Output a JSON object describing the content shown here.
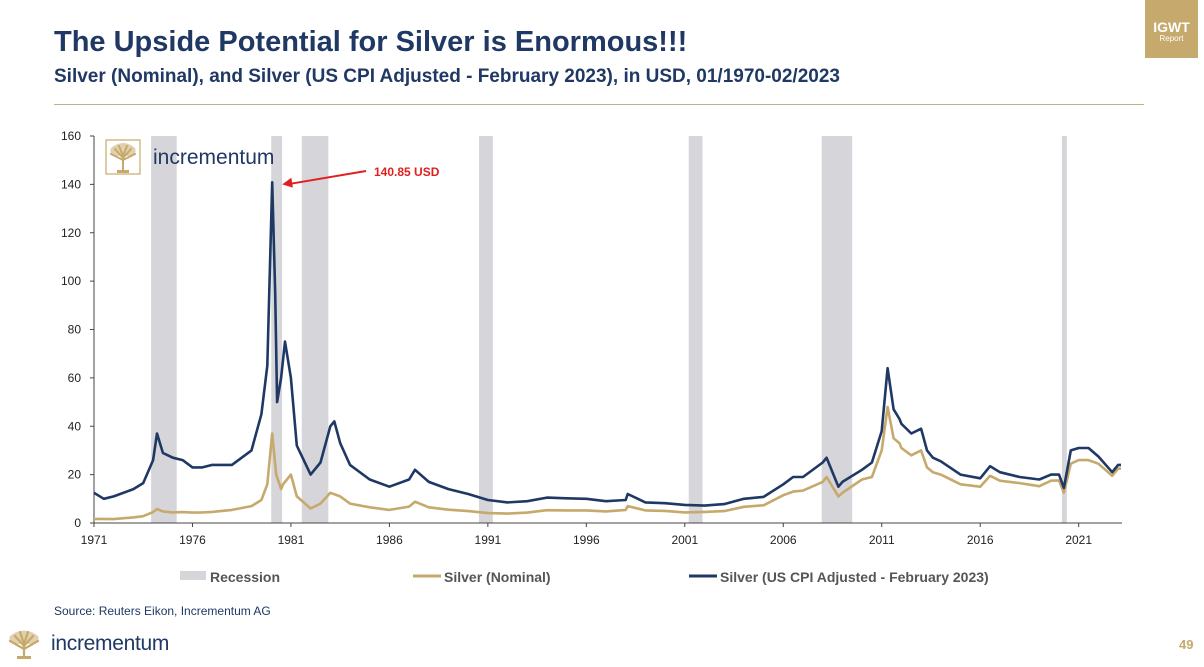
{
  "header": {
    "title": "The Upside Potential for Silver is Enormous!!!",
    "subtitle": "Silver (Nominal), and Silver (US CPI Adjusted - February 2023), in USD, 01/1970-02/2023"
  },
  "badge": {
    "main": "IGWT",
    "sub": "Report"
  },
  "source": "Source: Reuters Eikon, Incrementum AG",
  "footer": {
    "brand": "incrementum",
    "page_number": "49"
  },
  "colors": {
    "navy": "#1f3864",
    "gold": "#c6a96c",
    "recession": "#d6d6da",
    "annotation": "#e02020"
  },
  "icons": {
    "logo": "tree-logo-icon"
  },
  "chart_data": {
    "type": "line",
    "watermark": "incrementum",
    "x_ticks": [
      "1971",
      "1976",
      "1981",
      "1986",
      "1991",
      "1996",
      "2001",
      "2006",
      "2011",
      "2016",
      "2021"
    ],
    "y_ticks": [
      "0",
      "20",
      "40",
      "60",
      "80",
      "100",
      "120",
      "140",
      "160"
    ],
    "xlim": [
      1971.0,
      2023.2
    ],
    "ylim": [
      0,
      160
    ],
    "grid": false,
    "legend_position": "bottom",
    "recessions": [
      {
        "start": 1973.9,
        "end": 1975.2
      },
      {
        "start": 1980.0,
        "end": 1980.55
      },
      {
        "start": 1981.55,
        "end": 1982.9
      },
      {
        "start": 1990.55,
        "end": 1991.25
      },
      {
        "start": 2001.2,
        "end": 2001.9
      },
      {
        "start": 2007.95,
        "end": 2009.5
      },
      {
        "start": 2020.15,
        "end": 2020.4
      }
    ],
    "annotation": {
      "text": "140.85 USD",
      "x": 1980.05,
      "y": 140.85
    },
    "legend": [
      "Recession",
      "Silver (Nominal)",
      "Silver (US CPI Adjusted - February 2023)"
    ],
    "series": [
      {
        "name": "Silver (Nominal)",
        "x": [
          1971.0,
          1972.0,
          1973.0,
          1973.5,
          1974.0,
          1974.2,
          1974.5,
          1975.0,
          1975.5,
          1976.0,
          1976.5,
          1977.0,
          1978.0,
          1979.0,
          1979.5,
          1979.8,
          1980.05,
          1980.25,
          1980.5,
          1980.6,
          1981.0,
          1981.3,
          1982.0,
          1982.5,
          1983.0,
          1983.5,
          1984.0,
          1985.0,
          1986.0,
          1987.0,
          1987.3,
          1988.0,
          1989.0,
          1990.0,
          1991.0,
          1992.0,
          1993.0,
          1994.0,
          1995.0,
          1996.0,
          1997.0,
          1998.0,
          1998.1,
          1999.0,
          2000.0,
          2001.0,
          2002.0,
          2003.0,
          2004.0,
          2005.0,
          2006.0,
          2006.5,
          2007.0,
          2008.0,
          2008.2,
          2008.8,
          2009.0,
          2010.0,
          2010.5,
          2011.0,
          2011.3,
          2011.6,
          2011.9,
          2012.0,
          2012.5,
          2013.0,
          2013.3,
          2013.6,
          2014.0,
          2015.0,
          2016.0,
          2016.5,
          2017.0,
          2018.0,
          2019.0,
          2019.6,
          2020.0,
          2020.25,
          2020.6,
          2021.0,
          2021.5,
          2022.0,
          2022.7,
          2023.0,
          2023.15
        ],
        "values": [
          1.7,
          1.6,
          2.3,
          2.8,
          4.5,
          5.8,
          4.8,
          4.4,
          4.5,
          4.3,
          4.4,
          4.6,
          5.4,
          7.0,
          9.5,
          16.0,
          37.0,
          20.0,
          14.0,
          16.0,
          20.0,
          11.0,
          6.0,
          8.0,
          12.5,
          11.0,
          8.0,
          6.5,
          5.4,
          6.8,
          8.8,
          6.5,
          5.5,
          4.9,
          4.1,
          3.9,
          4.3,
          5.3,
          5.2,
          5.2,
          4.8,
          5.4,
          7.0,
          5.2,
          5.0,
          4.4,
          4.6,
          4.9,
          6.7,
          7.3,
          11.5,
          13.0,
          13.4,
          17.0,
          19.0,
          11.0,
          12.5,
          18.0,
          19.0,
          30.0,
          48.0,
          35.0,
          33.0,
          31.0,
          28.0,
          30.0,
          23.0,
          21.0,
          20.0,
          16.0,
          15.0,
          19.5,
          17.5,
          16.5,
          15.2,
          17.5,
          17.6,
          12.5,
          24.5,
          26.0,
          26.0,
          24.5,
          19.5,
          22.5,
          22.5
        ]
      },
      {
        "name": "Silver (US CPI Adjusted - February 2023)",
        "x": [
          1971.0,
          1971.5,
          1972.0,
          1973.0,
          1973.5,
          1974.0,
          1974.2,
          1974.5,
          1975.0,
          1975.5,
          1976.0,
          1976.5,
          1977.0,
          1978.0,
          1979.0,
          1979.5,
          1979.8,
          1980.05,
          1980.2,
          1980.3,
          1980.5,
          1980.7,
          1981.0,
          1981.3,
          1982.0,
          1982.5,
          1983.0,
          1983.2,
          1983.5,
          1984.0,
          1985.0,
          1986.0,
          1987.0,
          1987.3,
          1988.0,
          1989.0,
          1990.0,
          1991.0,
          1992.0,
          1993.0,
          1994.0,
          1995.0,
          1996.0,
          1997.0,
          1998.0,
          1998.1,
          1999.0,
          2000.0,
          2001.0,
          2002.0,
          2003.0,
          2004.0,
          2005.0,
          2006.0,
          2006.5,
          2007.0,
          2008.0,
          2008.2,
          2008.8,
          2009.0,
          2010.0,
          2010.5,
          2011.0,
          2011.3,
          2011.6,
          2011.9,
          2012.0,
          2012.5,
          2013.0,
          2013.3,
          2013.6,
          2014.0,
          2015.0,
          2016.0,
          2016.5,
          2017.0,
          2018.0,
          2019.0,
          2019.6,
          2020.0,
          2020.25,
          2020.6,
          2021.0,
          2021.5,
          2022.0,
          2022.7,
          2023.0,
          2023.15
        ],
        "values": [
          12.5,
          10.0,
          11.0,
          14.0,
          16.5,
          26.0,
          37.0,
          29.0,
          27.0,
          26.0,
          23.0,
          23.0,
          24.0,
          24.0,
          30.0,
          45.0,
          65.0,
          140.85,
          95.0,
          50.0,
          60.0,
          75.0,
          60.0,
          32.0,
          20.0,
          25.0,
          40.0,
          42.0,
          33.0,
          24.0,
          18.0,
          15.0,
          18.0,
          22.0,
          17.0,
          14.0,
          12.0,
          9.5,
          8.5,
          9.0,
          10.5,
          10.2,
          10.0,
          9.0,
          9.5,
          12.0,
          8.5,
          8.2,
          7.5,
          7.2,
          7.8,
          10.0,
          10.8,
          16.0,
          19.0,
          19.0,
          25.0,
          27.0,
          15.0,
          17.0,
          22.0,
          25.0,
          38.0,
          64.0,
          47.0,
          43.0,
          41.0,
          37.0,
          39.0,
          30.0,
          27.0,
          25.5,
          20.0,
          18.5,
          23.5,
          21.0,
          19.0,
          18.0,
          20.0,
          20.0,
          14.5,
          30.0,
          31.0,
          31.0,
          27.5,
          21.0,
          24.0,
          24.0
        ]
      }
    ]
  }
}
